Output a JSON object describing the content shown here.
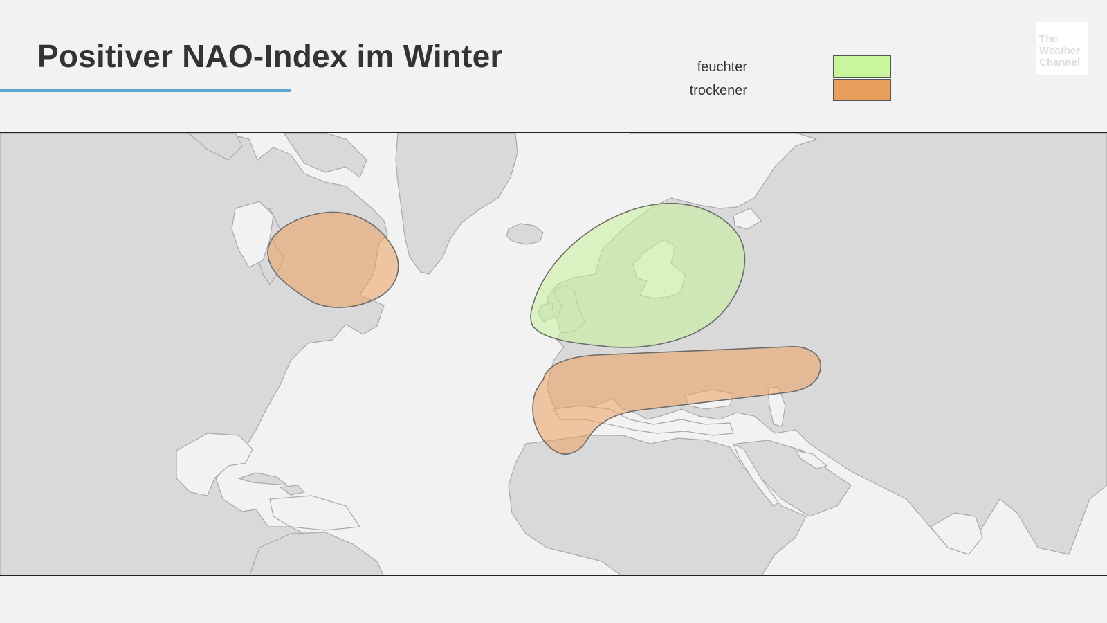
{
  "title": "Positiver NAO-Index im Winter",
  "colors": {
    "accent_line": "#5ba7d1",
    "land": "#d9d9d9",
    "ocean": "#f2f2f2",
    "wetter": "#c7f29a",
    "drier": "#eda05f"
  },
  "legend": {
    "items": [
      {
        "label": "feuchter",
        "color": "#c9f59c"
      },
      {
        "label": "trockener",
        "color": "#eb9f5e"
      }
    ]
  },
  "logo": {
    "line1": "The",
    "line2": "Weather",
    "line3": "Channel"
  },
  "map": {
    "regions": [
      {
        "name": "eastern-north-america",
        "category": "trockener"
      },
      {
        "name": "northern-europe",
        "category": "feuchter"
      },
      {
        "name": "mediterranean-southern-europe",
        "category": "trockener"
      }
    ]
  }
}
